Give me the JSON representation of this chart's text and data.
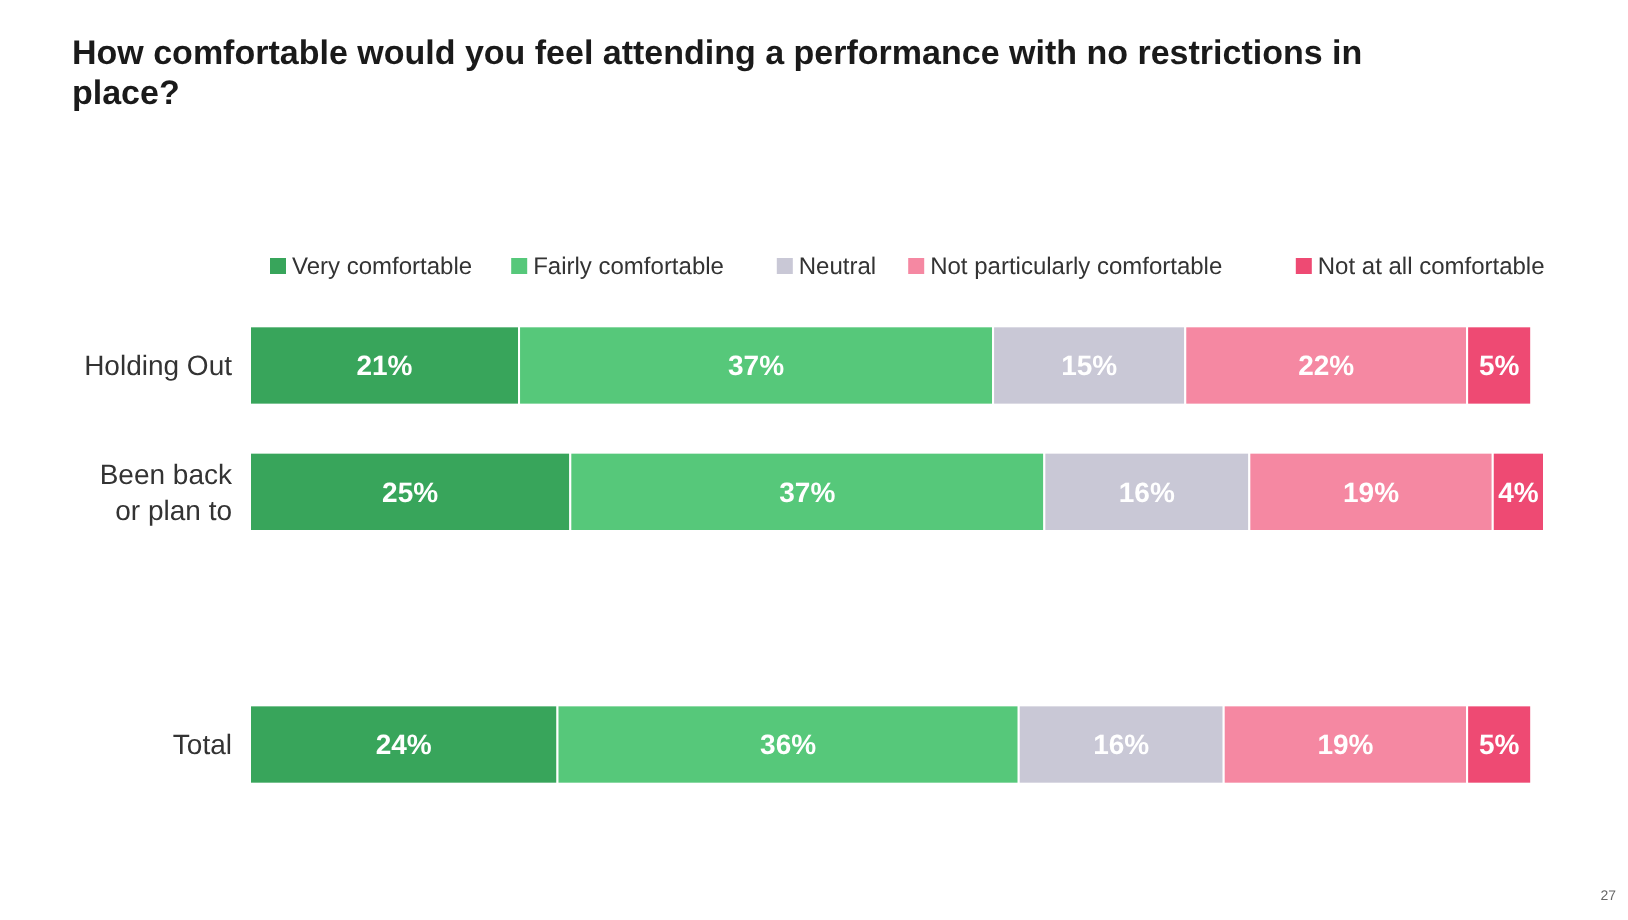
{
  "chart_data": {
    "type": "bar",
    "orientation": "horizontal",
    "stacked": true,
    "title": "How comfortable would you feel attending a performance with no restrictions in place?",
    "categories": [
      "Holding Out",
      "Been back or plan to",
      null,
      "Total"
    ],
    "series": [
      {
        "name": "Very comfortable",
        "color": "#38a55b",
        "values": [
          21,
          25,
          null,
          24
        ],
        "value_labels": [
          "21%",
          "25%",
          null,
          "24%"
        ]
      },
      {
        "name": "Fairly comfortable",
        "color": "#56c87a",
        "values": [
          37,
          37,
          null,
          36
        ],
        "value_labels": [
          "37%",
          "37%",
          null,
          "36%"
        ]
      },
      {
        "name": "Neutral",
        "color": "#c9c8d6",
        "values": [
          15,
          16,
          null,
          16
        ],
        "value_labels": [
          "15%",
          "16%",
          null,
          "16%"
        ]
      },
      {
        "name": "Not particularly comfortable",
        "color": "#f588a2",
        "values": [
          22,
          19,
          null,
          19
        ],
        "value_labels": [
          "22%",
          "19%",
          null,
          "19%"
        ]
      },
      {
        "name": "Not at all comfortable",
        "color": "#ee4a73",
        "values": [
          5,
          4,
          null,
          5
        ],
        "value_labels": [
          "5%",
          "4%",
          null,
          "5%"
        ]
      }
    ],
    "legend": "top",
    "annotations": [
      "27"
    ]
  }
}
